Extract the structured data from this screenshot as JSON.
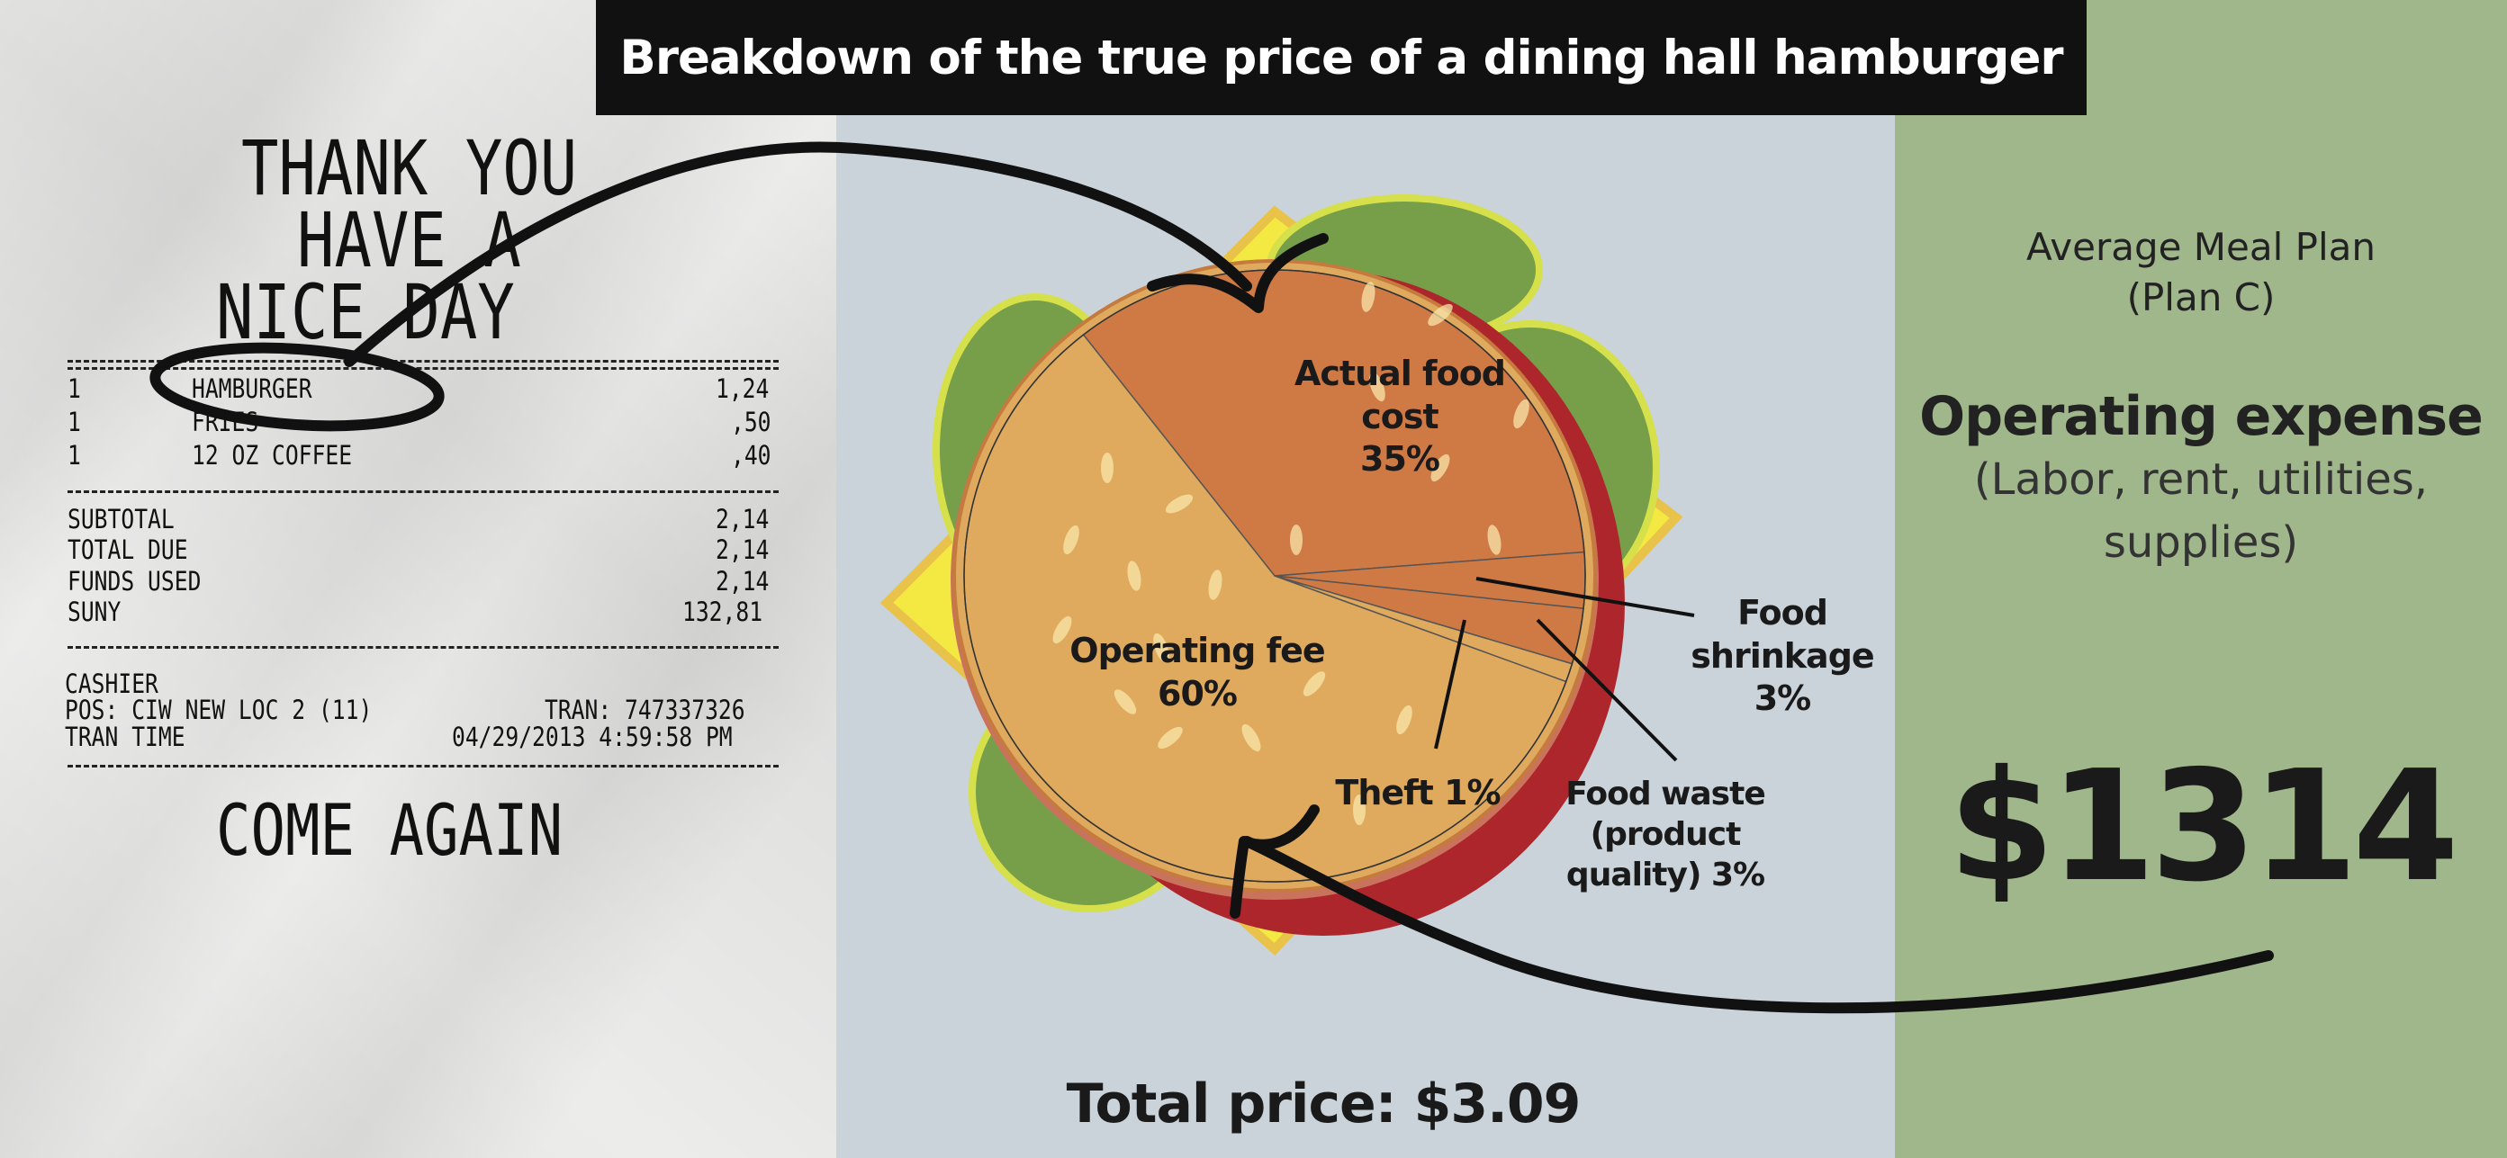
{
  "title": "Breakdown of the true price of a dining hall hamburger",
  "receipt": {
    "header": [
      "THANK YOU",
      "HAVE A",
      "NICE DAY"
    ],
    "items": [
      {
        "qty": "1",
        "name": "HAMBURGER",
        "price": "1,24"
      },
      {
        "qty": "1",
        "name": "FRIES",
        "price": ",50"
      },
      {
        "qty": "1",
        "name": "12 OZ COFFEE",
        "price": ",40"
      }
    ],
    "totals": [
      {
        "label": "SUBTOTAL",
        "value": "2,14"
      },
      {
        "label": "TOTAL DUE",
        "value": "2,14"
      },
      {
        "label": "FUNDS USED",
        "value": "2,14"
      },
      {
        "label": "SUNY",
        "value": "132,81"
      }
    ],
    "cashier": "CASHIER",
    "pos": "POS: CIW NEW LOC 2 (11)",
    "tran": "TRAN: 747337326",
    "tran_time_label": "TRAN TIME",
    "tran_time": "04/29/2013 4:59:58 PM",
    "footer": "COME AGAIN"
  },
  "chart_data": {
    "type": "pie",
    "title": "Breakdown of the true price of a dining hall hamburger",
    "categories": [
      "Actual food cost",
      "Food shrinkage",
      "Food waste (product quality)",
      "Theft",
      "Operating fee"
    ],
    "values": [
      35,
      3,
      3,
      1,
      60
    ],
    "unit": "%",
    "colors": [
      "#cf7a45",
      "#cf7a45",
      "#cf7a45",
      "#e0aa5e",
      "#e0aa5e"
    ],
    "labels": {
      "food": [
        "Actual food",
        "cost",
        "35%"
      ],
      "shrinkage": [
        "Food",
        "shrinkage",
        "3%"
      ],
      "waste": [
        "Food waste",
        "(product",
        "quality) 3%"
      ],
      "theft": "Theft 1%",
      "operating": [
        "Operating fee",
        "60%"
      ]
    }
  },
  "total_price": "Total price: $3.09",
  "meal_plan": {
    "name": "Average Meal Plan",
    "plan": "(Plan C)",
    "heading": "Operating expense",
    "detail1": "(Labor, rent, utilities,",
    "detail2": "supplies)",
    "amount": "$1314"
  }
}
